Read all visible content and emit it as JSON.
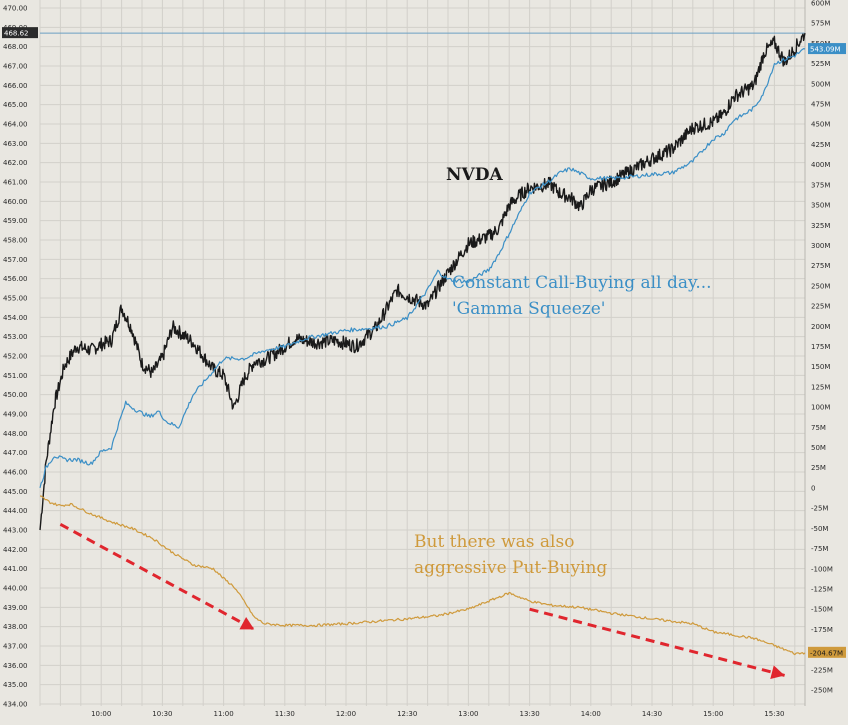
{
  "chart_data": {
    "type": "line",
    "title": "",
    "xlabel": "",
    "ylabel_left": "",
    "ylabel_right": "",
    "left_axis": {
      "ticks": [
        434,
        435,
        436,
        437,
        438,
        439,
        440,
        441,
        442,
        443,
        444,
        445,
        446,
        447,
        448,
        449,
        450,
        451,
        452,
        453,
        454,
        455,
        456,
        457,
        458,
        459,
        460,
        461,
        462,
        463,
        464,
        465,
        466,
        467,
        468,
        469,
        470
      ],
      "ylim": [
        434,
        470
      ]
    },
    "right_axis": {
      "ticks": [
        600,
        575,
        550,
        525,
        500,
        475,
        450,
        425,
        400,
        375,
        350,
        325,
        300,
        275,
        250,
        225,
        200,
        175,
        150,
        125,
        100,
        75,
        50,
        25,
        0,
        -25,
        -50,
        -75,
        -100,
        -125,
        -150,
        -175,
        -200,
        -225,
        -250
      ],
      "tick_labels": [
        "600M",
        "575M",
        "550M",
        "525M",
        "500M",
        "475M",
        "450M",
        "425M",
        "400M",
        "375M",
        "350M",
        "325M",
        "300M",
        "275M",
        "250M",
        "225M",
        "200M",
        "175M",
        "150M",
        "125M",
        "100M",
        "75M",
        "50M",
        "25M",
        "0",
        "-25M",
        "-50M",
        "-75M",
        "-100M",
        "-125M",
        "-150M",
        "-175M",
        "-200M",
        "-225M",
        "-250M"
      ],
      "ylim": [
        -250,
        600
      ]
    },
    "x_ticks": [
      "10:00",
      "10:30",
      "11:00",
      "11:30",
      "12:00",
      "12:30",
      "13:00",
      "13:30",
      "14:00",
      "14:30",
      "15:00",
      "15:30"
    ],
    "x_range": [
      "09:30",
      "15:45"
    ],
    "grid": true,
    "series": [
      {
        "name": "NVDA",
        "axis": "left",
        "color": "#1a1a1a",
        "x": [
          "09:30",
          "09:33",
          "09:37",
          "09:42",
          "09:48",
          "09:55",
          "10:00",
          "10:05",
          "10:10",
          "10:15",
          "10:20",
          "10:25",
          "10:30",
          "10:35",
          "10:45",
          "10:55",
          "11:00",
          "11:05",
          "11:10",
          "11:15",
          "11:20",
          "11:25",
          "11:35",
          "11:45",
          "11:55",
          "12:05",
          "12:15",
          "12:25",
          "12:30",
          "12:40",
          "12:45",
          "12:50",
          "13:00",
          "13:10",
          "13:15",
          "13:20",
          "13:25",
          "13:30",
          "13:40",
          "13:45",
          "13:50",
          "13:55",
          "14:00",
          "14:10",
          "14:20",
          "14:30",
          "14:40",
          "14:50",
          "15:00",
          "15:05",
          "15:10",
          "15:15",
          "15:20",
          "15:25",
          "15:30",
          "15:35",
          "15:40",
          "15:45"
        ],
        "values": [
          443.0,
          446.5,
          449.5,
          451.5,
          452.5,
          452.3,
          452.6,
          452.8,
          454.5,
          453.4,
          451.6,
          451.1,
          451.9,
          453.5,
          452.7,
          451.3,
          451.0,
          449.3,
          450.8,
          451.7,
          451.8,
          452.1,
          452.9,
          452.7,
          452.8,
          452.5,
          453.5,
          455.4,
          455.1,
          454.6,
          455.5,
          456.3,
          457.8,
          458.2,
          458.6,
          459.8,
          460.3,
          460.7,
          460.9,
          460.4,
          460.2,
          459.7,
          460.6,
          461.0,
          461.6,
          462.2,
          462.7,
          463.8,
          464.1,
          464.5,
          465.4,
          465.7,
          466.0,
          467.7,
          468.2,
          467.2,
          467.9,
          468.7
        ]
      },
      {
        "name": "Call-Buying",
        "axis": "right",
        "color": "#3b8fc6",
        "x": [
          "09:30",
          "09:33",
          "09:37",
          "09:42",
          "09:48",
          "09:55",
          "10:00",
          "10:05",
          "10:08",
          "10:12",
          "10:18",
          "10:24",
          "10:28",
          "10:32",
          "10:38",
          "10:45",
          "10:55",
          "11:00",
          "11:10",
          "11:20",
          "11:30",
          "11:40",
          "11:50",
          "12:00",
          "12:10",
          "12:20",
          "12:30",
          "12:40",
          "12:45",
          "12:50",
          "13:00",
          "13:10",
          "13:15",
          "13:20",
          "13:25",
          "13:30",
          "13:40",
          "13:45",
          "13:50",
          "14:00",
          "14:10",
          "14:20",
          "14:30",
          "14:40",
          "14:50",
          "15:00",
          "15:05",
          "15:10",
          "15:15",
          "15:20",
          "15:25",
          "15:30",
          "15:35",
          "15:40",
          "15:45"
        ],
        "values": [
          0,
          25,
          40,
          35,
          35,
          30,
          45,
          50,
          75,
          105,
          95,
          88,
          95,
          82,
          75,
          115,
          145,
          160,
          160,
          170,
          175,
          185,
          190,
          195,
          197,
          200,
          210,
          245,
          268,
          258,
          255,
          270,
          290,
          315,
          340,
          365,
          380,
          390,
          395,
          383,
          383,
          385,
          388,
          390,
          404,
          432,
          438,
          455,
          462,
          470,
          490,
          525,
          530,
          535,
          543
        ]
      },
      {
        "name": "Put-Buying",
        "axis": "right",
        "color": "#cf9a3c",
        "x": [
          "09:30",
          "09:35",
          "09:40",
          "09:45",
          "09:55",
          "10:05",
          "10:15",
          "10:25",
          "10:35",
          "10:45",
          "10:55",
          "11:00",
          "11:05",
          "11:10",
          "11:15",
          "11:20",
          "11:30",
          "11:45",
          "12:00",
          "12:15",
          "12:30",
          "12:45",
          "13:00",
          "13:10",
          "13:20",
          "13:25",
          "13:30",
          "13:40",
          "13:55",
          "14:10",
          "14:30",
          "14:50",
          "15:00",
          "15:10",
          "15:20",
          "15:30",
          "15:40",
          "15:45"
        ],
        "values": [
          -10,
          -18,
          -22,
          -20,
          -32,
          -42,
          -50,
          -62,
          -80,
          -95,
          -100,
          -112,
          -122,
          -140,
          -160,
          -168,
          -170,
          -170,
          -168,
          -165,
          -162,
          -158,
          -150,
          -140,
          -130,
          -135,
          -140,
          -145,
          -148,
          -155,
          -162,
          -168,
          -178,
          -182,
          -186,
          -195,
          -205,
          -204
        ]
      }
    ],
    "last_values": {
      "NVDA": "468.62",
      "Call-Buying": "543.09M",
      "Put-Buying": "-204.67M"
    },
    "annotations": [
      {
        "text": "NVDA",
        "color": "#1a1a1a"
      },
      {
        "text": "Constant Call-Buying all day...",
        "color": "#3b8fc6"
      },
      {
        "text": "'Gamma Squeeze'",
        "color": "#3b8fc6"
      },
      {
        "text": "But there was also",
        "color": "#cf9a3c"
      },
      {
        "text": "aggressive Put-Buying",
        "color": "#cf9a3c"
      }
    ],
    "arrow_color": "#e0262e"
  }
}
